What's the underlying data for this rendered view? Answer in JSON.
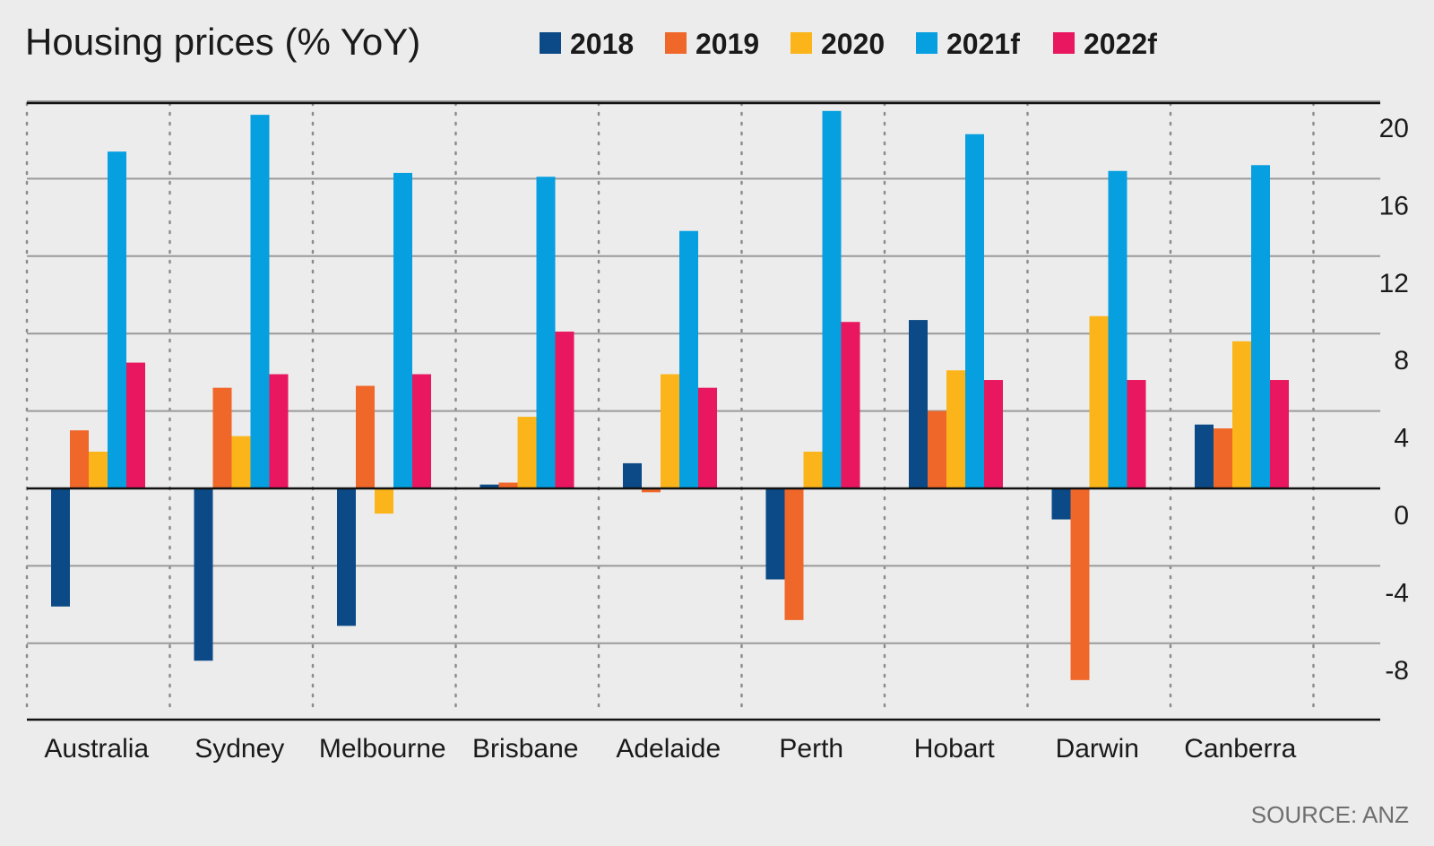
{
  "chart_data": {
    "type": "bar",
    "title": "Housing prices (% YoY)",
    "source": "SOURCE: ANZ",
    "categories": [
      "Australia",
      "Sydney",
      "Melbourne",
      "Brisbane",
      "Adelaide",
      "Perth",
      "Hobart",
      "Darwin",
      "Canberra"
    ],
    "series": [
      {
        "name": "2018",
        "color": "#0b4a86",
        "values": [
          -6.1,
          -8.9,
          -7.1,
          0.2,
          1.3,
          -4.7,
          8.7,
          -1.6,
          3.3
        ]
      },
      {
        "name": "2019",
        "color": "#f0672a",
        "values": [
          3.0,
          5.2,
          5.3,
          0.3,
          -0.2,
          -6.8,
          4.0,
          -9.9,
          3.1
        ]
      },
      {
        "name": "2020",
        "color": "#fbb51a",
        "values": [
          1.9,
          2.7,
          -1.3,
          3.7,
          5.9,
          1.9,
          6.1,
          8.9,
          7.6
        ]
      },
      {
        "name": "2021f",
        "color": "#069fdf",
        "values": [
          17.4,
          19.3,
          16.3,
          16.1,
          13.3,
          19.5,
          18.3,
          16.4,
          16.7
        ]
      },
      {
        "name": "2022f",
        "color": "#e8175f",
        "values": [
          6.5,
          5.9,
          5.9,
          8.1,
          5.2,
          8.6,
          5.6,
          5.6,
          5.6
        ]
      }
    ],
    "y_ticks": [
      "20",
      "16",
      "12",
      "8",
      "4",
      "0",
      "-4",
      "-8"
    ],
    "ylim": [
      -12,
      20
    ],
    "grid": true,
    "legend_position": "top"
  }
}
